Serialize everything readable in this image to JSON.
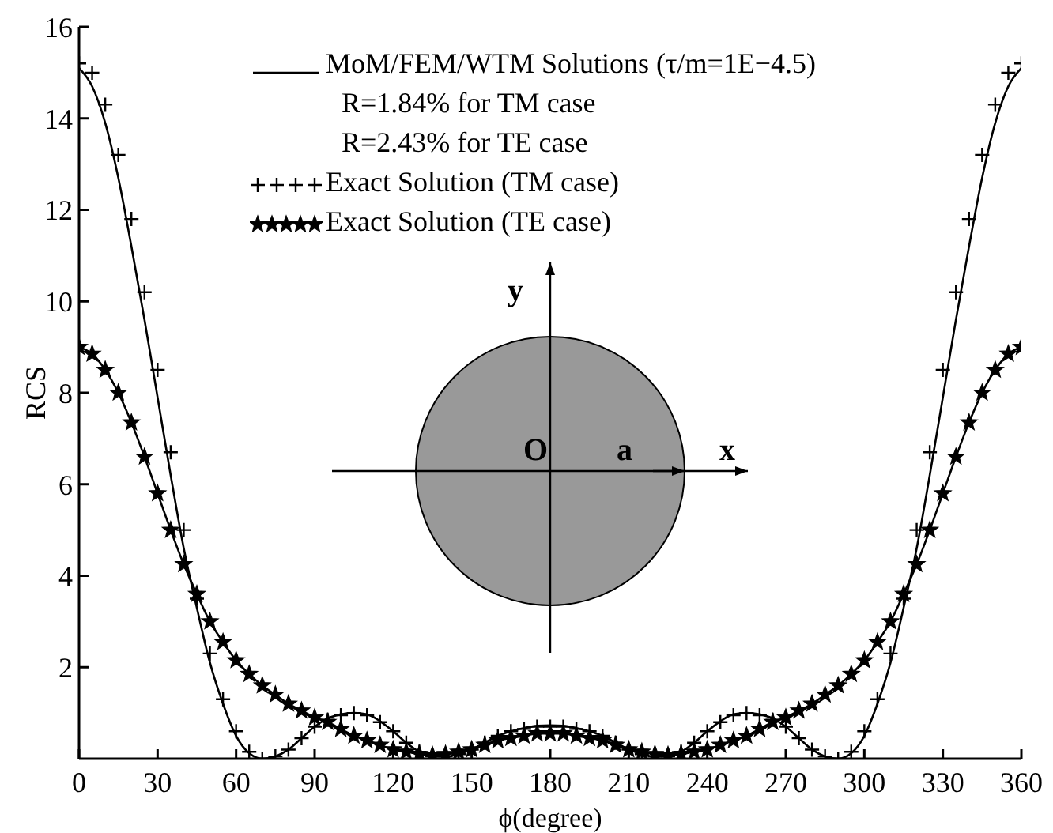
{
  "chart_data": {
    "type": "line",
    "xlabel": "ϕ(degree)",
    "ylabel": "RCS",
    "x": [
      0,
      5,
      10,
      15,
      20,
      25,
      30,
      35,
      40,
      45,
      50,
      55,
      60,
      65,
      70,
      75,
      80,
      85,
      90,
      95,
      100,
      105,
      110,
      115,
      120,
      125,
      130,
      135,
      140,
      145,
      150,
      155,
      160,
      165,
      170,
      175,
      180,
      185,
      190,
      195,
      200,
      205,
      210,
      215,
      220,
      225,
      230,
      235,
      240,
      245,
      250,
      255,
      260,
      265,
      270,
      275,
      280,
      285,
      290,
      295,
      300,
      305,
      310,
      315,
      320,
      325,
      330,
      335,
      340,
      345,
      350,
      355,
      360
    ],
    "xlim": [
      0,
      360
    ],
    "xticks": [
      0,
      30,
      60,
      90,
      120,
      150,
      180,
      210,
      240,
      270,
      300,
      330,
      360
    ],
    "ylim": [
      0,
      16
    ],
    "yticks": [
      2,
      4,
      6,
      8,
      10,
      12,
      14,
      16
    ],
    "legend": "top",
    "grid": false,
    "series": [
      {
        "name": "MoM/FEM/WTM Solutions (τ/m=1E−4.5)",
        "marker": "none",
        "line_style": "solid",
        "color": "#000000",
        "values": [
          15.1,
          14.7,
          13.9,
          12.7,
          11.2,
          9.6,
          7.9,
          6.2,
          4.6,
          3.3,
          2.1,
          1.2,
          0.5,
          0.12,
          0,
          0.05,
          0.2,
          0.45,
          0.7,
          0.88,
          0.97,
          1.0,
          0.97,
          0.82,
          0.6,
          0.35,
          0.15,
          0.05,
          0.05,
          0.1,
          0.2,
          0.35,
          0.5,
          0.6,
          0.67,
          0.72,
          0.73,
          0.72,
          0.67,
          0.6,
          0.5,
          0.35,
          0.2,
          0.1,
          0.05,
          0.05,
          0.15,
          0.35,
          0.6,
          0.82,
          0.97,
          1.0,
          0.97,
          0.88,
          0.7,
          0.45,
          0.2,
          0.05,
          0,
          0.12,
          0.5,
          1.2,
          2.1,
          3.3,
          4.6,
          6.2,
          7.9,
          9.6,
          11.2,
          12.7,
          13.9,
          14.7,
          15.1
        ]
      },
      {
        "marker": "none",
        "line_style": "solid",
        "color": "#000000",
        "values": [
          9.0,
          8.85,
          8.5,
          8.0,
          7.35,
          6.6,
          5.8,
          5.0,
          4.25,
          3.6,
          3.0,
          2.55,
          2.15,
          1.85,
          1.6,
          1.4,
          1.2,
          1.05,
          0.9,
          0.8,
          0.65,
          0.5,
          0.4,
          0.3,
          0.2,
          0.15,
          0.1,
          0.08,
          0.1,
          0.15,
          0.2,
          0.3,
          0.4,
          0.45,
          0.5,
          0.55,
          0.55,
          0.55,
          0.5,
          0.45,
          0.4,
          0.3,
          0.2,
          0.15,
          0.1,
          0.08,
          0.1,
          0.15,
          0.2,
          0.3,
          0.4,
          0.5,
          0.65,
          0.8,
          0.9,
          1.05,
          1.2,
          1.4,
          1.6,
          1.85,
          2.15,
          2.55,
          3.0,
          3.6,
          4.25,
          5.0,
          5.8,
          6.6,
          7.35,
          8.0,
          8.5,
          8.85,
          9.0
        ]
      },
      {
        "name": "Exact Solution (TM case)",
        "type": "scatter",
        "marker": "cross",
        "color": "#000000",
        "values": [
          15.2,
          15.0,
          14.3,
          13.2,
          11.8,
          10.2,
          8.5,
          6.7,
          5.0,
          3.5,
          2.3,
          1.3,
          0.6,
          0.15,
          0,
          0.05,
          0.2,
          0.45,
          0.7,
          0.85,
          0.95,
          1.0,
          0.95,
          0.8,
          0.6,
          0.35,
          0.15,
          0.05,
          0.05,
          0.1,
          0.2,
          0.35,
          0.5,
          0.6,
          0.65,
          0.7,
          0.7,
          0.7,
          0.65,
          0.6,
          0.5,
          0.35,
          0.2,
          0.1,
          0.05,
          0.05,
          0.15,
          0.35,
          0.6,
          0.8,
          0.95,
          1.0,
          0.95,
          0.85,
          0.7,
          0.45,
          0.2,
          0.05,
          0,
          0.15,
          0.6,
          1.3,
          2.3,
          3.5,
          5.0,
          6.7,
          8.5,
          10.2,
          11.8,
          13.2,
          14.3,
          15.0,
          15.2
        ]
      },
      {
        "name": "Exact Solution (TE case)",
        "type": "scatter",
        "marker": "star",
        "color": "#000000",
        "values": [
          9.0,
          8.85,
          8.5,
          8.0,
          7.35,
          6.6,
          5.8,
          5.0,
          4.25,
          3.6,
          3.0,
          2.55,
          2.15,
          1.85,
          1.6,
          1.4,
          1.2,
          1.05,
          0.9,
          0.8,
          0.65,
          0.5,
          0.4,
          0.3,
          0.2,
          0.15,
          0.1,
          0.08,
          0.1,
          0.15,
          0.2,
          0.3,
          0.4,
          0.45,
          0.5,
          0.55,
          0.55,
          0.55,
          0.5,
          0.45,
          0.4,
          0.3,
          0.2,
          0.15,
          0.1,
          0.08,
          0.1,
          0.15,
          0.2,
          0.3,
          0.4,
          0.5,
          0.65,
          0.8,
          0.9,
          1.05,
          1.2,
          1.4,
          1.6,
          1.85,
          2.15,
          2.55,
          3.0,
          3.6,
          4.25,
          5.0,
          5.8,
          6.6,
          7.35,
          8.0,
          8.5,
          8.85,
          9.0
        ]
      }
    ],
    "annotations": [
      "R=1.84% for TM case",
      "R=2.43% for TE case",
      "y",
      "O",
      "a",
      "x"
    ]
  }
}
